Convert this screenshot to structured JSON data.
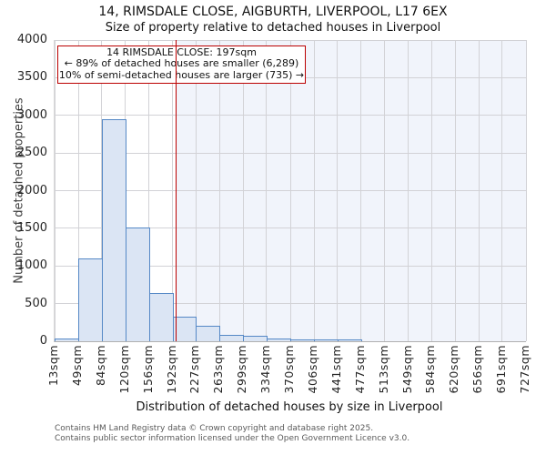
{
  "title": {
    "line1": "14, RIMSDALE CLOSE, AIGBURTH, LIVERPOOL, L17 6EX",
    "line2": "Size of property relative to detached houses in Liverpool"
  },
  "annotation": {
    "line1": "14 RIMSDALE CLOSE: 197sqm",
    "line2": "← 89% of detached houses are smaller (6,289)",
    "line3": "10% of semi-detached houses are larger (735) →"
  },
  "chart_data": {
    "type": "bar",
    "title": "14, RIMSDALE CLOSE, AIGBURTH, LIVERPOOL, L17 6EX — Size of property relative to detached houses in Liverpool",
    "xlabel": "Distribution of detached houses by size in Liverpool",
    "ylabel": "Number of detached properties",
    "bin_edges_sqm": [
      13,
      49,
      84,
      120,
      156,
      192,
      227,
      263,
      299,
      334,
      370,
      406,
      441,
      477,
      513,
      549,
      584,
      620,
      656,
      691,
      727
    ],
    "x_tick_labels": [
      "13sqm",
      "49sqm",
      "84sqm",
      "120sqm",
      "156sqm",
      "192sqm",
      "227sqm",
      "263sqm",
      "299sqm",
      "334sqm",
      "370sqm",
      "406sqm",
      "441sqm",
      "477sqm",
      "513sqm",
      "549sqm",
      "584sqm",
      "620sqm",
      "656sqm",
      "691sqm",
      "727sqm"
    ],
    "values": [
      40,
      1100,
      2950,
      1510,
      640,
      330,
      200,
      90,
      70,
      35,
      30,
      30,
      20,
      0,
      0,
      0,
      0,
      0,
      0,
      0
    ],
    "y_ticks": [
      0,
      500,
      1000,
      1500,
      2000,
      2500,
      3000,
      3500,
      4000
    ],
    "ylim": [
      0,
      4000
    ],
    "xlim_sqm": [
      13,
      727
    ],
    "marker_value_sqm": 197,
    "grid": true,
    "legend": "none",
    "colors": {
      "bar_fill": "#dbe5f4",
      "bar_edge": "#5588c6",
      "marker_line": "#bb0000",
      "annotation_border": "#bb0000",
      "shade_right_of_marker": "#f1f4fb",
      "gridline": "#d2d2d6"
    }
  },
  "footer": {
    "line1": "Contains HM Land Registry data © Crown copyright and database right 2025.",
    "line2": "Contains public sector information licensed under the Open Government Licence v3.0."
  }
}
